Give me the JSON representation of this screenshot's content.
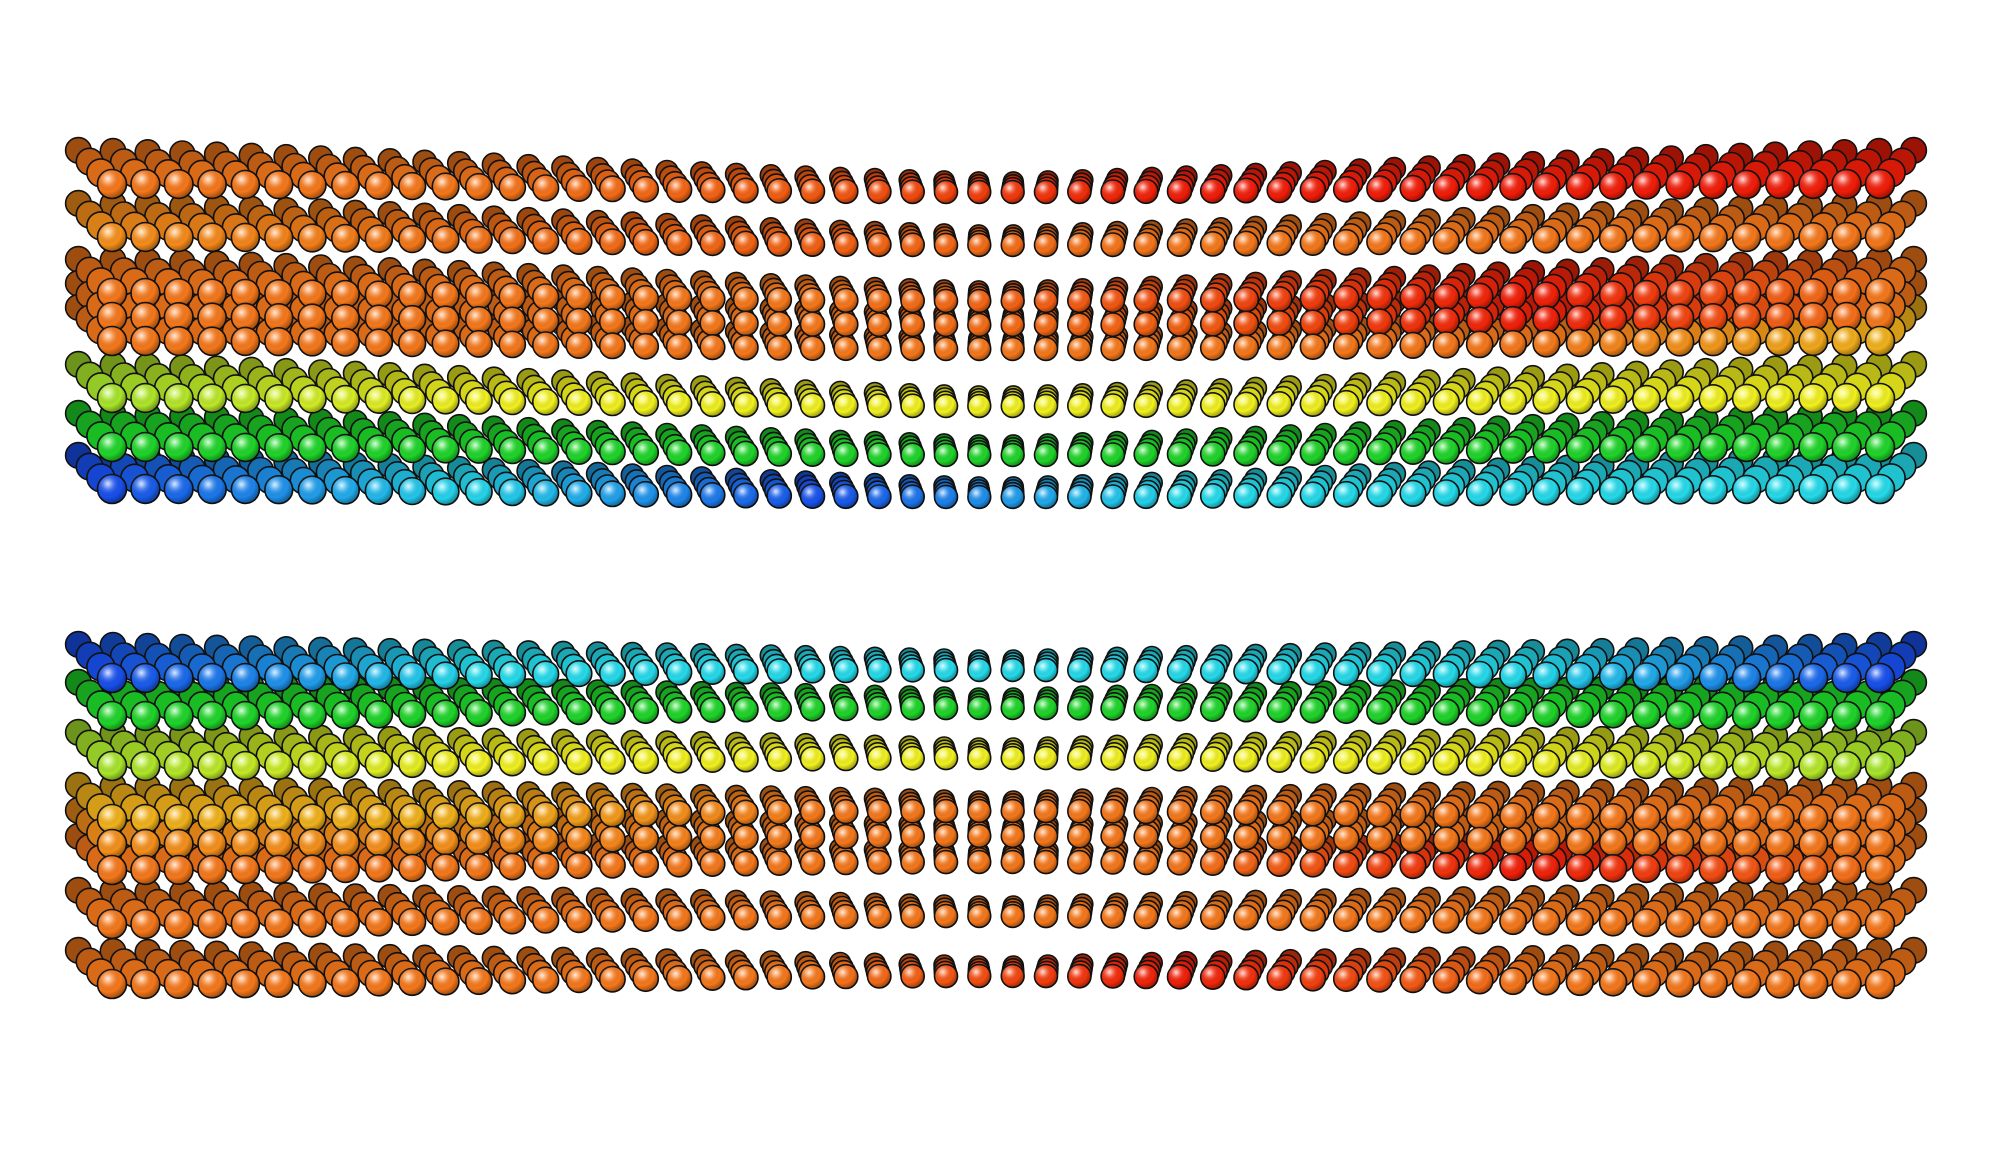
{
  "figure": {
    "background_color": "#ffffff",
    "outline_color": "#111111",
    "palette": {
      "red": "#f41d08",
      "orange": "#f7781a",
      "yellow_orange": "#f2b21a",
      "yellow": "#f2f21e",
      "yellow_green": "#a8e62a",
      "green": "#1ed629",
      "cyan": "#24dcec",
      "blue": "#1850ee"
    },
    "blocks": [
      {
        "name": "upper-atom-block",
        "columns": 54,
        "layers": [
          {
            "name": "layer-1",
            "color_stops": [
              "#f7781a",
              "#f7781a",
              "#f55a10",
              "#f41d08",
              "#f41d08",
              "#f41d08"
            ]
          },
          {
            "name": "layer-2",
            "color_stops": [
              "#f7901a",
              "#f57418",
              "#f56012",
              "#f7781a",
              "#f7781a",
              "#f7781a"
            ]
          },
          {
            "name": "layer-3",
            "color_stops": [
              "#f7781a",
              "#f7781a",
              "#f7781a",
              "#f55010",
              "#f41d08",
              "#f7781a"
            ]
          },
          {
            "name": "layer-4",
            "color_stops": [
              "#f7781a",
              "#f7781a",
              "#f7781a",
              "#f56010",
              "#f41d08",
              "#f7781a"
            ]
          },
          {
            "name": "layer-5",
            "color_stops": [
              "#f7781a",
              "#f7781a",
              "#f7781a",
              "#f7781a",
              "#f7781a",
              "#f2b21a"
            ]
          },
          {
            "name": "layer-6",
            "color_stops": [
              "#a8e62a",
              "#f2f21e",
              "#f2f21e",
              "#f2f21e",
              "#f2f21e",
              "#f2f21e"
            ]
          },
          {
            "name": "layer-7",
            "color_stops": [
              "#1ed629",
              "#1ed629",
              "#1ed629",
              "#1ed629",
              "#1ed629",
              "#1ed629"
            ]
          },
          {
            "name": "layer-8",
            "color_stops": [
              "#1850ee",
              "#24dcec",
              "#1850ee",
              "#24dcec",
              "#24dcec",
              "#24dcec"
            ]
          }
        ]
      },
      {
        "name": "lower-atom-block",
        "columns": 54,
        "layers": [
          {
            "name": "layer-1",
            "color_stops": [
              "#1850ee",
              "#24dcec",
              "#24dcec",
              "#24dcec",
              "#24dcec",
              "#1850ee"
            ]
          },
          {
            "name": "layer-2",
            "color_stops": [
              "#1ed629",
              "#1ed629",
              "#1ed629",
              "#1ed629",
              "#1ed629",
              "#1ed629"
            ]
          },
          {
            "name": "layer-3",
            "color_stops": [
              "#a8e62a",
              "#f2f21e",
              "#f2f21e",
              "#f2f21e",
              "#f2f21e",
              "#a8e62a"
            ]
          },
          {
            "name": "layer-4",
            "color_stops": [
              "#f2b21a",
              "#f2b21a",
              "#f7781a",
              "#f7781a",
              "#f7781a",
              "#f7781a"
            ]
          },
          {
            "name": "layer-5",
            "color_stops": [
              "#f7901a",
              "#f7901a",
              "#f7781a",
              "#f7781a",
              "#f7781a",
              "#f7781a"
            ]
          },
          {
            "name": "layer-6",
            "color_stops": [
              "#f7781a",
              "#f7781a",
              "#f7781a",
              "#f7781a",
              "#f41d08",
              "#f7781a"
            ]
          },
          {
            "name": "layer-7",
            "color_stops": [
              "#f7781a",
              "#f7781a",
              "#f7781a",
              "#f7781a",
              "#f7781a",
              "#f7781a"
            ]
          },
          {
            "name": "layer-8",
            "color_stops": [
              "#f7781a",
              "#f7781a",
              "#f7781a",
              "#f41d08",
              "#f7781a",
              "#f7781a"
            ]
          }
        ]
      }
    ]
  }
}
